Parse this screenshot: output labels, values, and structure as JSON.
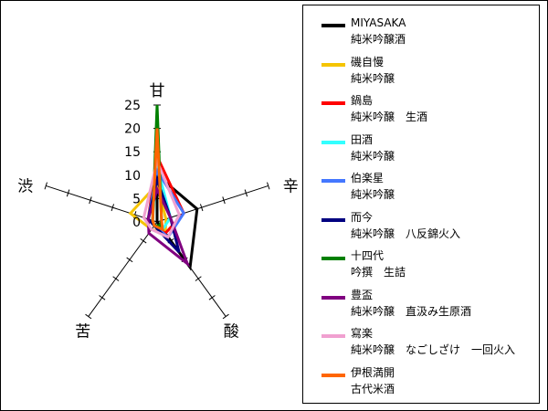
{
  "chart_data": {
    "type": "radar",
    "axes": [
      "甘",
      "辛",
      "酸",
      "苦",
      "渋"
    ],
    "rlim": [
      0,
      25
    ],
    "ticks": [
      "0",
      "5",
      "10",
      "15",
      "20",
      "25"
    ],
    "grid": false,
    "legend_position": "right",
    "series": [
      {
        "name": "MIYASAKA",
        "subtitle": "純米吟醸酒",
        "color": "#000000",
        "values": [
          10,
          9,
          12,
          0,
          0
        ]
      },
      {
        "name": "磯自慢",
        "subtitle": "純米吟醸",
        "color": "#f5c400",
        "values": [
          8,
          2,
          3,
          2,
          6
        ]
      },
      {
        "name": "鍋島",
        "subtitle": "純米吟醸　生酒",
        "color": "#ff0000",
        "values": [
          14,
          6,
          3,
          1,
          2
        ]
      },
      {
        "name": "田酒",
        "subtitle": "純米吟醸",
        "color": "#33ffff",
        "values": [
          12,
          3,
          2,
          1,
          1
        ]
      },
      {
        "name": "伯楽星",
        "subtitle": "純米吟醸",
        "color": "#4477ff",
        "values": [
          11,
          6,
          4,
          1,
          2
        ]
      },
      {
        "name": "而今",
        "subtitle": "純米吟醸　八反錦火入",
        "color": "#000080",
        "values": [
          9,
          3,
          8,
          1,
          2
        ]
      },
      {
        "name": "十四代",
        "subtitle": "吟撰　生詰",
        "color": "#008000",
        "values": [
          25,
          1,
          1,
          1,
          1
        ]
      },
      {
        "name": "豊盃",
        "subtitle": "純米吟醸　直汲み生原酒",
        "color": "#800080",
        "values": [
          7,
          3,
          11,
          3,
          2
        ]
      },
      {
        "name": "寫楽",
        "subtitle": "純米吟醸　なごしざけ　一回火入",
        "color": "#f0a0d0",
        "values": [
          13,
          5,
          4,
          2,
          3
        ]
      },
      {
        "name": "伊根満開",
        "subtitle": "古代米酒",
        "color": "#ff6600",
        "values": [
          20,
          1,
          2,
          1,
          1
        ]
      }
    ]
  }
}
